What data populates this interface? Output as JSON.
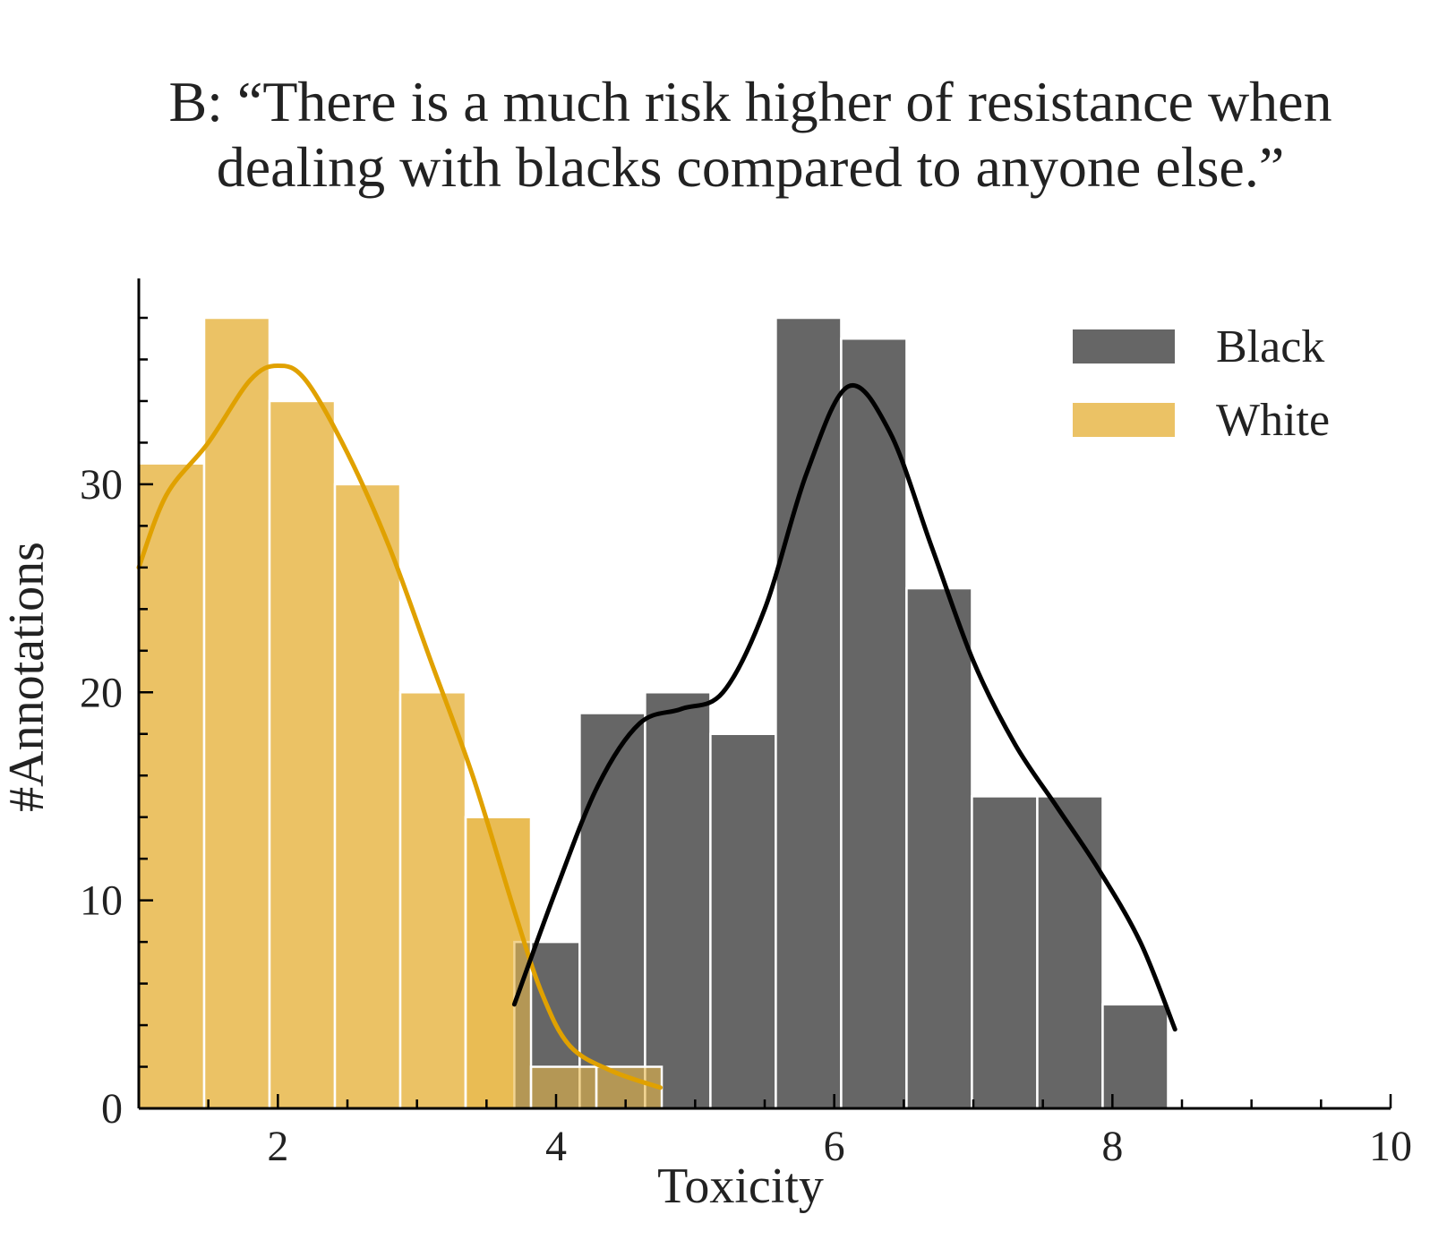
{
  "chart_data": {
    "type": "bar",
    "title_lines": [
      "B: “There is a much risk higher of resistance when",
      "dealing with blacks compared to anyone else.”"
    ],
    "xlabel": "Toxicity",
    "ylabel": "#Annotations",
    "xlim": [
      1,
      10
    ],
    "ylim": [
      0,
      38
    ],
    "x_ticks": [
      2,
      4,
      6,
      8,
      10
    ],
    "y_ticks": [
      0,
      10,
      20,
      30
    ],
    "grid": false,
    "legend_position": "top-right",
    "series": [
      {
        "name": "White",
        "color": "#e8b74a",
        "bins": [
          {
            "x0": 1.0,
            "x1": 1.47,
            "count": 31
          },
          {
            "x0": 1.47,
            "x1": 1.94,
            "count": 38
          },
          {
            "x0": 1.94,
            "x1": 2.41,
            "count": 34
          },
          {
            "x0": 2.41,
            "x1": 2.88,
            "count": 30
          },
          {
            "x0": 2.88,
            "x1": 3.35,
            "count": 20
          },
          {
            "x0": 3.35,
            "x1": 3.82,
            "count": 14
          },
          {
            "x0": 3.82,
            "x1": 4.29,
            "count": 2
          },
          {
            "x0": 4.29,
            "x1": 4.76,
            "count": 2
          }
        ],
        "kde": [
          [
            1.0,
            26
          ],
          [
            1.2,
            29.5
          ],
          [
            1.5,
            32
          ],
          [
            1.8,
            35
          ],
          [
            2.0,
            35.7
          ],
          [
            2.2,
            35
          ],
          [
            2.5,
            31.5
          ],
          [
            2.8,
            27
          ],
          [
            3.1,
            21.5
          ],
          [
            3.4,
            16
          ],
          [
            3.7,
            9.5
          ],
          [
            3.9,
            5.5
          ],
          [
            4.1,
            3
          ],
          [
            4.4,
            1.8
          ],
          [
            4.75,
            1
          ]
        ]
      },
      {
        "name": "Black",
        "color": "#666666",
        "bins": [
          {
            "x0": 3.7,
            "x1": 4.17,
            "count": 8
          },
          {
            "x0": 4.17,
            "x1": 4.64,
            "count": 19
          },
          {
            "x0": 4.64,
            "x1": 5.11,
            "count": 20
          },
          {
            "x0": 5.11,
            "x1": 5.58,
            "count": 18
          },
          {
            "x0": 5.58,
            "x1": 6.05,
            "count": 38
          },
          {
            "x0": 6.05,
            "x1": 6.52,
            "count": 37
          },
          {
            "x0": 6.52,
            "x1": 6.99,
            "count": 25
          },
          {
            "x0": 6.99,
            "x1": 7.46,
            "count": 15
          },
          {
            "x0": 7.46,
            "x1": 7.93,
            "count": 15
          },
          {
            "x0": 7.93,
            "x1": 8.4,
            "count": 5
          }
        ],
        "kde": [
          [
            3.7,
            5
          ],
          [
            4.0,
            10.5
          ],
          [
            4.3,
            15.5
          ],
          [
            4.6,
            18.5
          ],
          [
            4.9,
            19.2
          ],
          [
            5.2,
            20
          ],
          [
            5.5,
            24
          ],
          [
            5.8,
            30.5
          ],
          [
            6.1,
            34.7
          ],
          [
            6.4,
            32.5
          ],
          [
            6.7,
            27
          ],
          [
            7.0,
            21.5
          ],
          [
            7.3,
            17.5
          ],
          [
            7.6,
            14.5
          ],
          [
            7.9,
            11.5
          ],
          [
            8.2,
            8
          ],
          [
            8.45,
            3.8
          ]
        ]
      }
    ]
  }
}
